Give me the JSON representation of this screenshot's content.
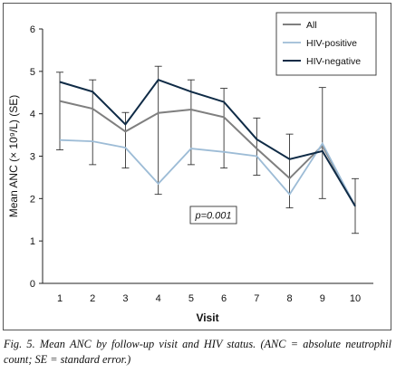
{
  "chart_data": {
    "type": "line",
    "xlabel": "Visit",
    "ylabel": "Mean ANC (× 10⁹/L) (SE)",
    "xlim": [
      1,
      10
    ],
    "ylim": [
      0,
      6
    ],
    "x_ticks": [
      1,
      2,
      3,
      4,
      5,
      6,
      7,
      8,
      9,
      10
    ],
    "y_ticks": [
      0,
      1,
      2,
      3,
      4,
      5,
      6
    ],
    "grid": false,
    "legend_position": "top-right",
    "annotation": "p=0.001",
    "series": [
      {
        "name": "All",
        "color": "#7f7f7f",
        "x": [
          1,
          2,
          3,
          4,
          5,
          6,
          7,
          8,
          9,
          10
        ],
        "y": [
          4.3,
          4.12,
          3.58,
          4.02,
          4.1,
          3.92,
          3.18,
          2.48,
          3.25,
          1.82
        ]
      },
      {
        "name": "HIV-positive",
        "color": "#9dbcd6",
        "x": [
          1,
          2,
          3,
          4,
          5,
          6,
          7,
          8,
          9,
          10
        ],
        "y": [
          3.38,
          3.35,
          3.2,
          2.35,
          3.18,
          3.1,
          3.0,
          2.1,
          3.3,
          1.82
        ]
      },
      {
        "name": "HIV-negative",
        "color": "#0f2b46",
        "x": [
          1,
          2,
          3,
          4,
          5,
          6,
          7,
          8,
          9,
          10
        ],
        "y": [
          4.75,
          4.52,
          3.75,
          4.8,
          4.52,
          4.28,
          3.4,
          2.93,
          3.12,
          1.82
        ]
      }
    ],
    "error_bars": [
      {
        "x": 1,
        "low": 3.15,
        "high": 4.98
      },
      {
        "x": 2,
        "low": 2.8,
        "high": 4.8
      },
      {
        "x": 3,
        "low": 2.72,
        "high": 4.03
      },
      {
        "x": 4,
        "low": 2.1,
        "high": 5.12
      },
      {
        "x": 5,
        "low": 2.8,
        "high": 4.8
      },
      {
        "x": 6,
        "low": 2.72,
        "high": 4.6
      },
      {
        "x": 7,
        "low": 2.55,
        "high": 3.9
      },
      {
        "x": 8,
        "low": 1.78,
        "high": 3.52
      },
      {
        "x": 9,
        "low": 2.0,
        "high": 4.62
      },
      {
        "x": 10,
        "low": 1.18,
        "high": 2.47
      }
    ]
  },
  "caption": "Fig. 5. Mean ANC by follow-up visit and HIV status. (ANC = absolute neutrophil count; SE = standard error.)"
}
